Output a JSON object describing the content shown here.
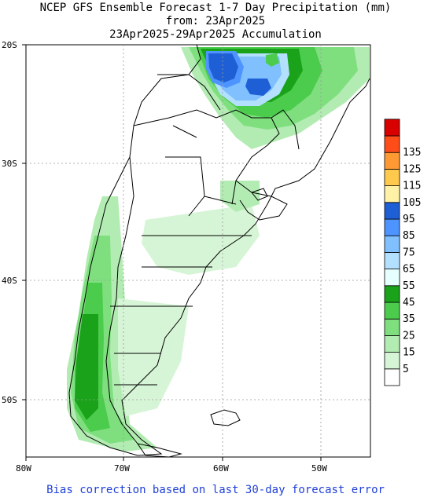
{
  "title": {
    "line1": "NCEP GFS Ensemble Forecast 1-7 Day Precipitation (mm)",
    "line2": "from: 23Apr2025",
    "line3": "23Apr2025-29Apr2025 Accumulation"
  },
  "footer": "Bias correction based on last 30-day forecast error",
  "axes": {
    "lat_labels": [
      "20S",
      "30S",
      "40S",
      "50S"
    ],
    "lon_labels": [
      "80W",
      "70W",
      "60W",
      "50W"
    ]
  },
  "colorbar": {
    "levels": [
      "5",
      "15",
      "25",
      "35",
      "45",
      "55",
      "65",
      "75",
      "85",
      "95",
      "105",
      "115",
      "125",
      "135"
    ],
    "colors": [
      "#ffffff",
      "#d6f5d6",
      "#b3ecb3",
      "#7fdf7f",
      "#4ccc4c",
      "#1aa31a",
      "#e6ffff",
      "#b3e0ff",
      "#80c0ff",
      "#4d94ff",
      "#1f5fd6",
      "#fff2a6",
      "#ffc94d",
      "#ff9933",
      "#ff4d1a",
      "#d90000"
    ]
  },
  "colors": {
    "grid": "#9a9a9a",
    "land_border": "#000000",
    "footer_text": "#1f3fd8"
  }
}
